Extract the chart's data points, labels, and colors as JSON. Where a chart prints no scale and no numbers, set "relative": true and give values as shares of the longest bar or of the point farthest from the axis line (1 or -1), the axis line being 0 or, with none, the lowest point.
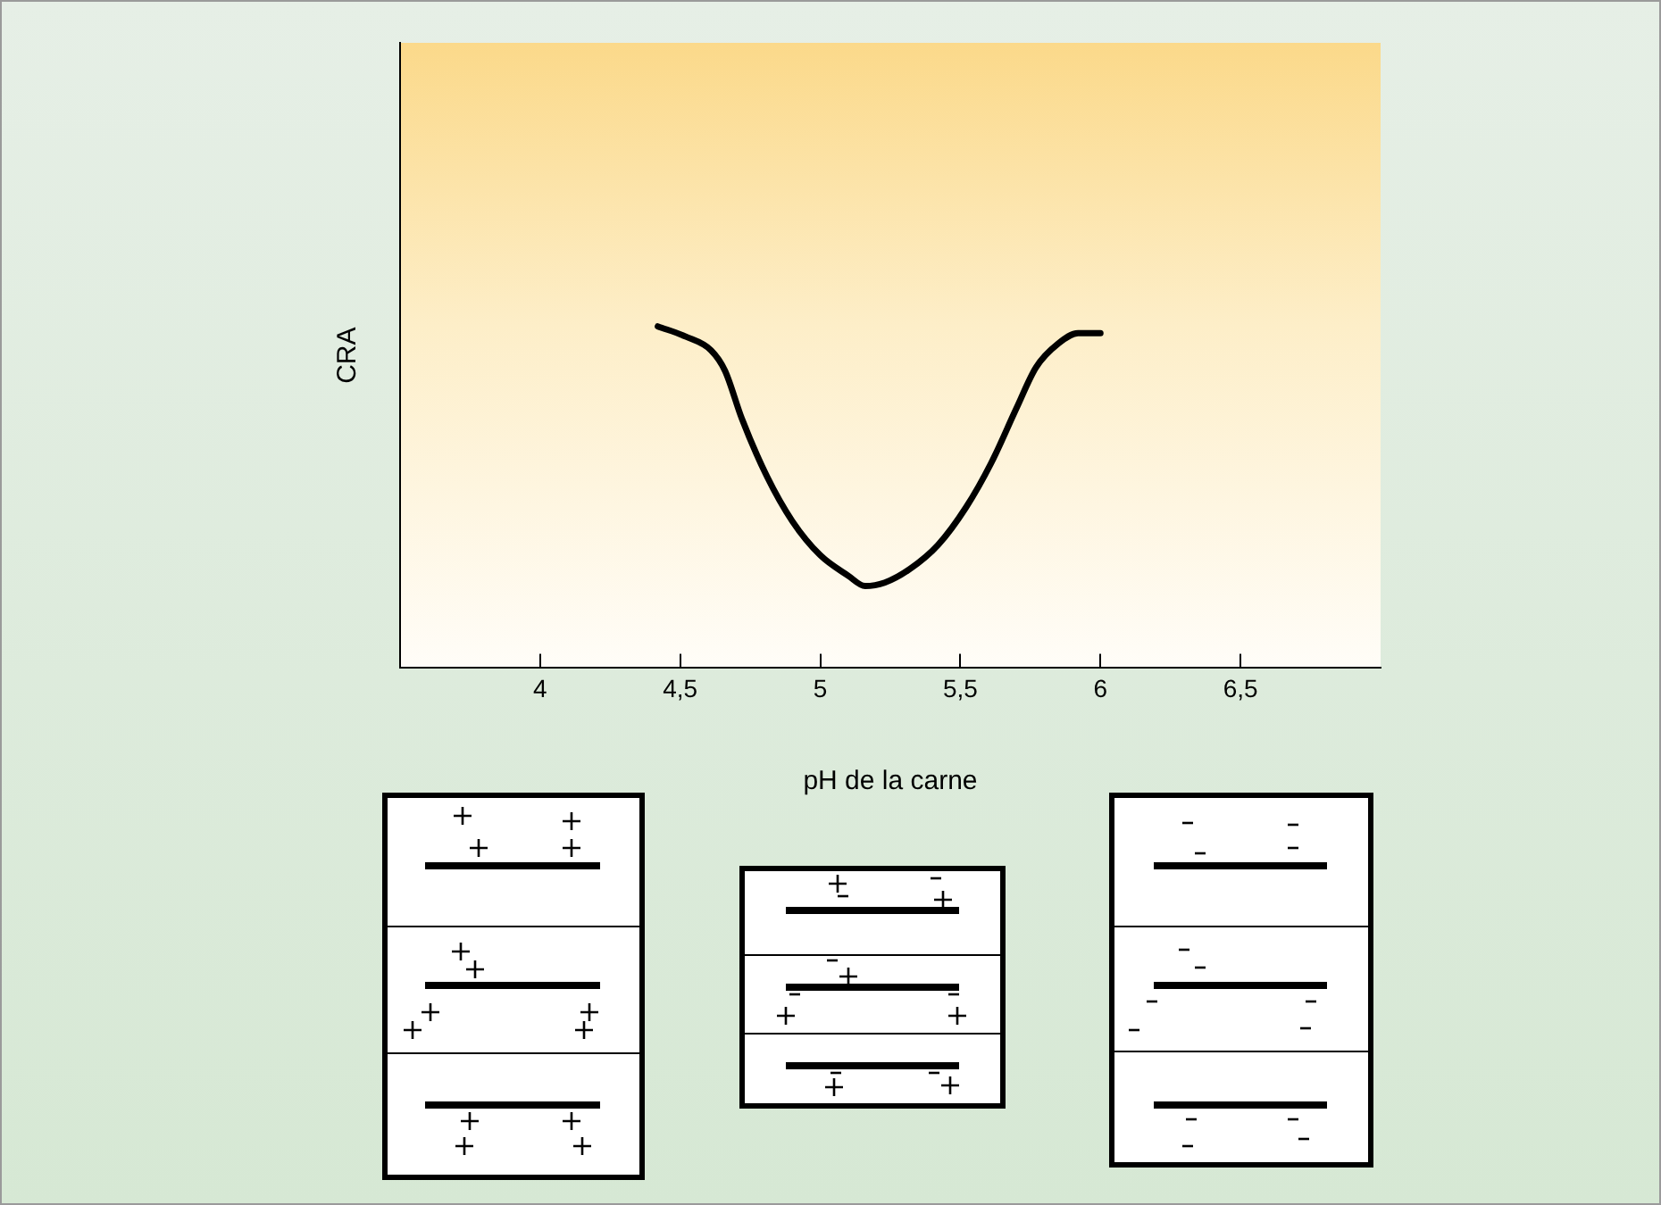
{
  "chart_data": {
    "type": "line",
    "relative": true,
    "xlabel": "pH de la carne",
    "ylabel": "CRA",
    "color": "#000000",
    "marker": "none",
    "grid": false,
    "legend": false,
    "x": [
      4.42,
      4.52,
      4.61,
      4.66,
      4.72,
      4.81,
      4.9,
      5.0,
      5.1,
      5.16,
      5.23,
      5.32,
      5.42,
      5.52,
      5.61,
      5.7,
      5.77,
      5.85,
      5.92,
      6.0
    ],
    "values": [
      1,
      0.97,
      0.93,
      0.87,
      0.73,
      0.56,
      0.43,
      0.33,
      0.27,
      0.24,
      0.25,
      0.29,
      0.36,
      0.47,
      0.6,
      0.76,
      0.88,
      0.95,
      0.98,
      0.98
    ],
    "xlim": [
      3.5,
      7.0
    ],
    "xticks": [
      4,
      {
        "value": 4.5,
        "label": "4,5"
      },
      5,
      {
        "value": 5.5,
        "label": "5,5"
      },
      6,
      {
        "value": 6.5,
        "label": "6,5"
      }
    ]
  }
}
